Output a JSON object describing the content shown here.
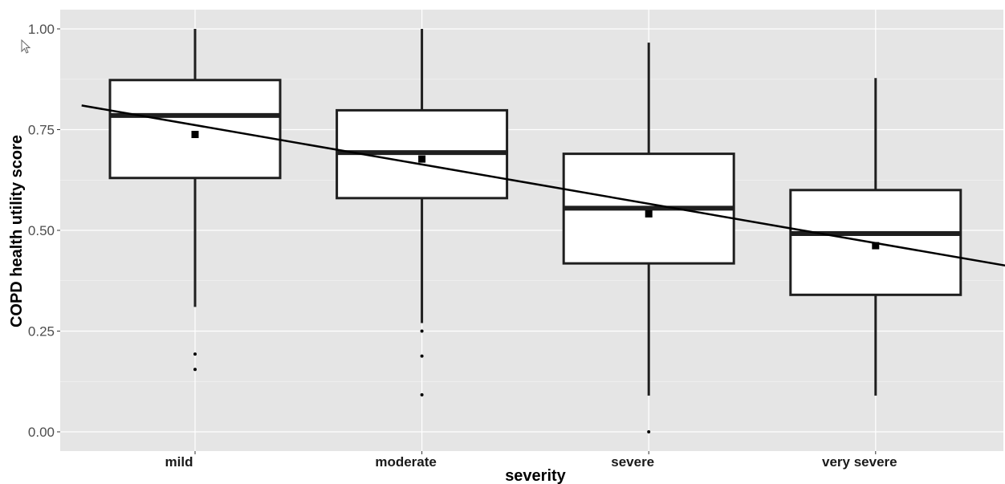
{
  "chart_data": {
    "type": "box",
    "xlabel": "severity",
    "ylabel": "COPD health utility score",
    "ylim": [
      0,
      1.05
    ],
    "yticks": [
      "0.00",
      "0.25",
      "0.50",
      "0.75",
      "1.00"
    ],
    "ytick_values": [
      0,
      0.25,
      0.5,
      0.75,
      1.0
    ],
    "categories": [
      "mild",
      "moderate",
      "severe",
      "very severe"
    ],
    "boxes": [
      {
        "category": "mild",
        "whisker_low": 0.31,
        "q1": 0.63,
        "median": 0.785,
        "q3": 0.873,
        "whisker_high": 1.0,
        "mean": 0.738,
        "outliers": [
          0.193,
          0.155
        ]
      },
      {
        "category": "moderate",
        "whisker_low": 0.27,
        "q1": 0.58,
        "median": 0.693,
        "q3": 0.798,
        "whisker_high": 1.0,
        "mean": 0.677,
        "outliers": [
          0.25,
          0.188,
          0.092
        ]
      },
      {
        "category": "severe",
        "whisker_low": 0.09,
        "q1": 0.418,
        "median": 0.555,
        "q3": 0.69,
        "whisker_high": 0.966,
        "mean": 0.541,
        "outliers": [
          0.0
        ]
      },
      {
        "category": "very severe",
        "whisker_low": 0.09,
        "q1": 0.34,
        "median": 0.492,
        "q3": 0.6,
        "whisker_high": 0.878,
        "mean": 0.462,
        "outliers": []
      }
    ],
    "trend_line": {
      "x_start": 0.5,
      "y_start": 0.81,
      "x_end": 4.65,
      "y_end": 0.405
    },
    "panel_background": "#e5e5e5",
    "grid": true,
    "grid_color": "#ffffff",
    "box_fill": "#ffffff",
    "line_color": "#1f1f1f"
  }
}
